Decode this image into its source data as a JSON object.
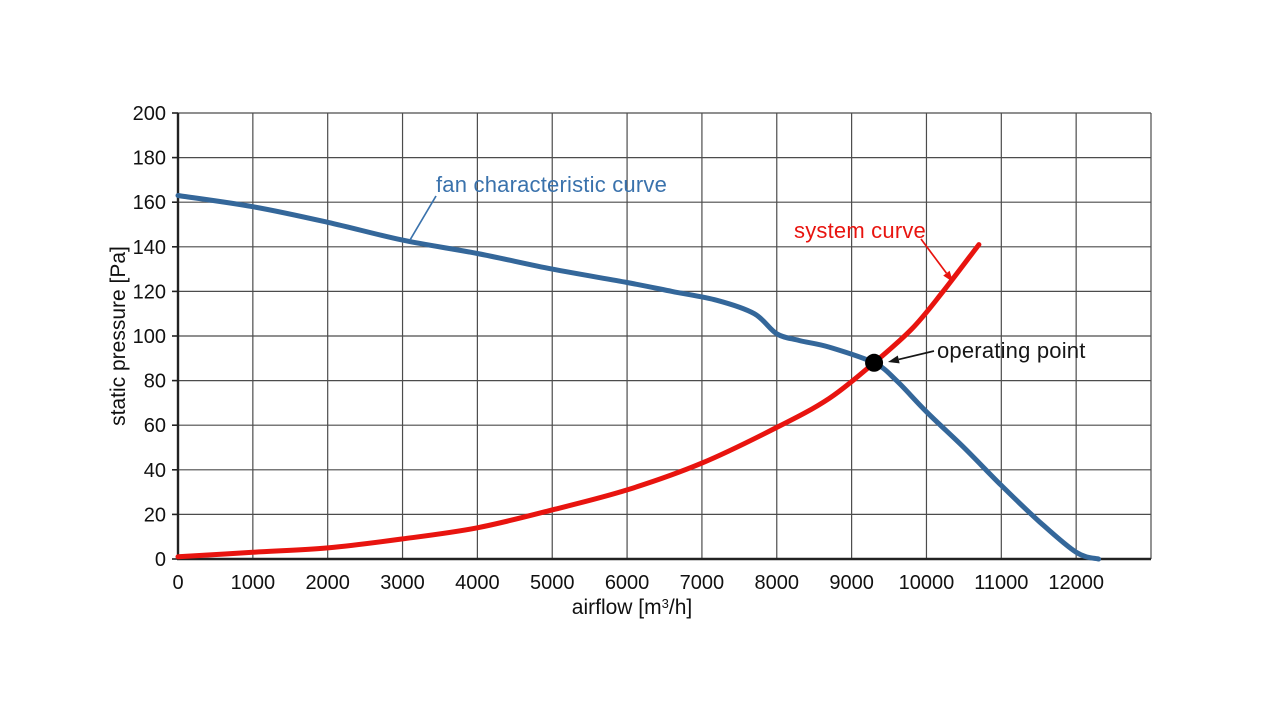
{
  "chart_data": {
    "type": "line",
    "title": "",
    "xlabel": "airflow [m³/h]",
    "xlabel_prefix": "airflow [m",
    "xlabel_sup": "3",
    "xlabel_suffix": "/h]",
    "ylabel": "static pressure [Pa]",
    "xlim": [
      0,
      13000
    ],
    "ylim": [
      0,
      200
    ],
    "grid": true,
    "legend_position": "inline-annotations",
    "x_ticks": [
      0,
      1000,
      2000,
      3000,
      4000,
      5000,
      6000,
      7000,
      8000,
      9000,
      10000,
      11000,
      12000
    ],
    "y_ticks": [
      0,
      20,
      40,
      60,
      80,
      100,
      120,
      140,
      160,
      180,
      200
    ],
    "series": [
      {
        "name": "fan characteristic curve",
        "color": "#34679a",
        "label_color": "#3a72ac",
        "points": [
          [
            0,
            163
          ],
          [
            1000,
            158
          ],
          [
            2000,
            151
          ],
          [
            3000,
            143
          ],
          [
            4000,
            137
          ],
          [
            5000,
            130
          ],
          [
            6000,
            124
          ],
          [
            6600,
            120
          ],
          [
            7200,
            116
          ],
          [
            7700,
            110
          ],
          [
            8000,
            101
          ],
          [
            8300,
            98
          ],
          [
            8700,
            95
          ],
          [
            9300,
            88
          ],
          [
            9600,
            80
          ],
          [
            10000,
            66
          ],
          [
            10500,
            50
          ],
          [
            11000,
            33
          ],
          [
            11500,
            17
          ],
          [
            12000,
            3
          ],
          [
            12300,
            0
          ]
        ]
      },
      {
        "name": "system curve",
        "color": "#e8140f",
        "label_color": "#e8140f",
        "points": [
          [
            0,
            1
          ],
          [
            1000,
            3
          ],
          [
            2000,
            5
          ],
          [
            3000,
            9
          ],
          [
            4000,
            14
          ],
          [
            5000,
            22
          ],
          [
            6000,
            31
          ],
          [
            7000,
            43
          ],
          [
            8000,
            59
          ],
          [
            8700,
            72
          ],
          [
            9300,
            88
          ],
          [
            9800,
            103
          ],
          [
            10200,
            119
          ],
          [
            10700,
            141
          ]
        ]
      }
    ],
    "operating_point": {
      "x": 9300,
      "y": 88,
      "label": "operating point",
      "marker_color": "#000000",
      "label_color": "#161616"
    }
  },
  "style": {
    "background": "#ffffff",
    "grid_color": "#4c4c4c",
    "axis_color": "#222222",
    "tick_label_color": "#111111"
  }
}
